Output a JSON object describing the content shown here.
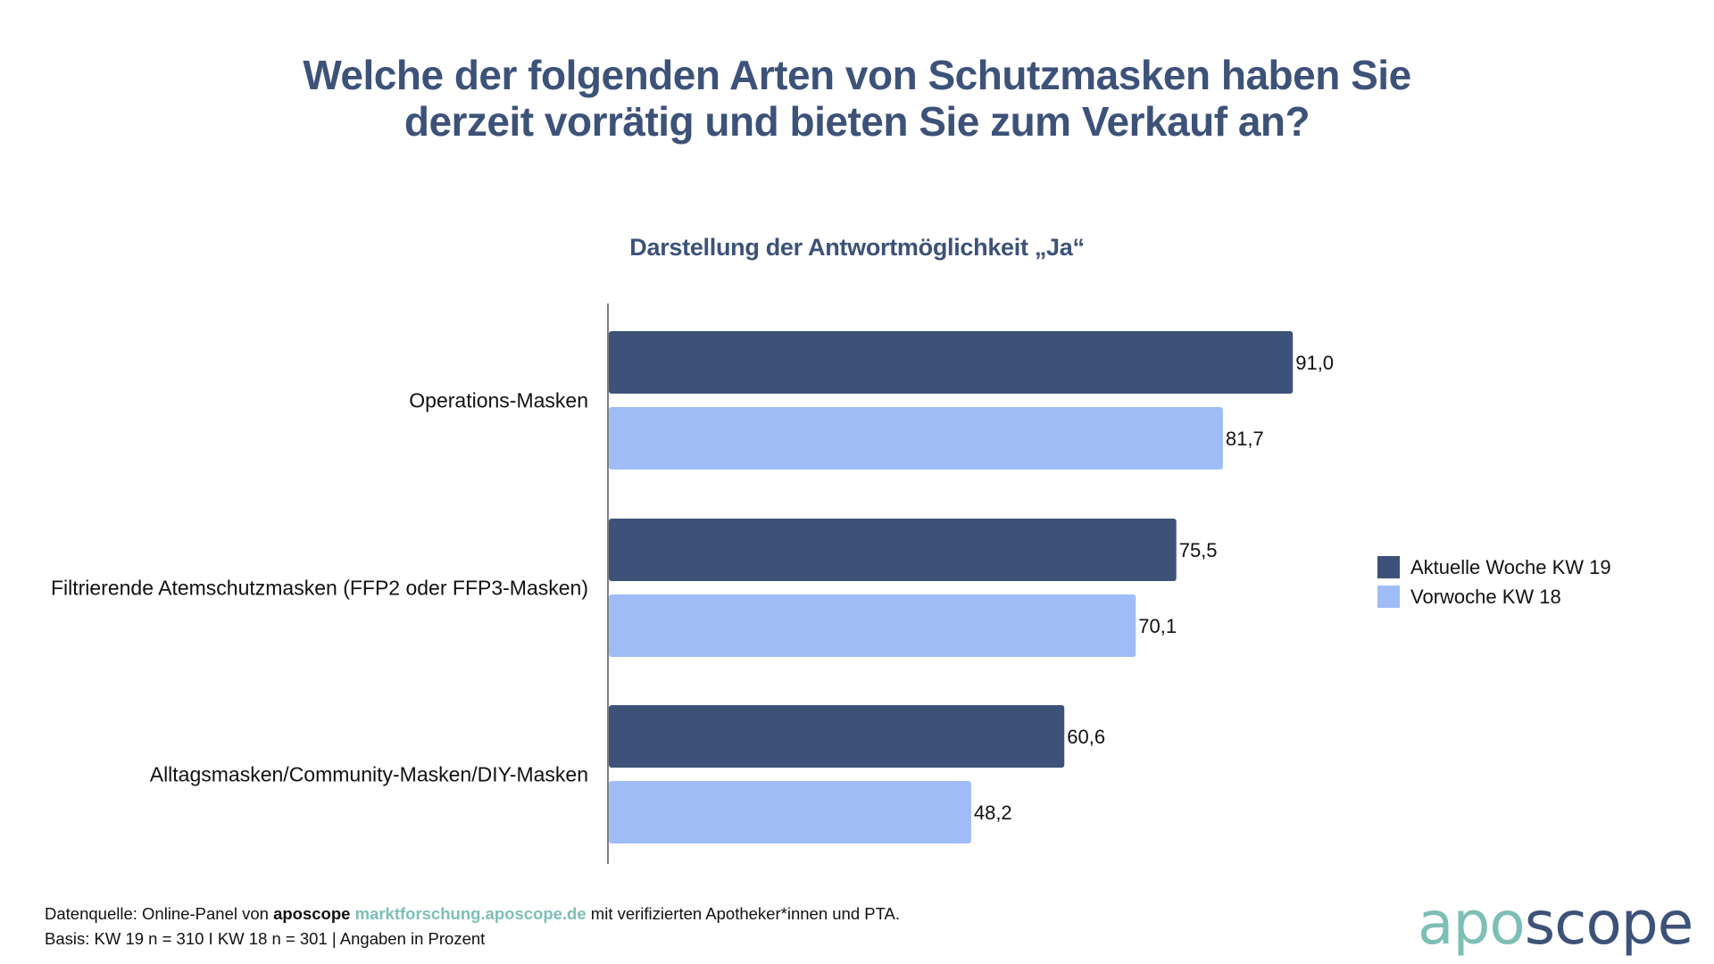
{
  "header": {
    "title_line1": "Welche der folgenden Arten von Schutzmasken haben Sie",
    "title_line2": "derzeit vorrätig und bieten Sie zum Verkauf an?",
    "subtitle": "Darstellung der Antwortmöglichkeit „Ja“"
  },
  "colors": {
    "title": "#3d5278",
    "current_week": "#3d5278",
    "previous_week": "#9fbcf7",
    "logo_accent": "#7dbfb6"
  },
  "chart_data": {
    "type": "bar",
    "orientation": "horizontal",
    "title": "Welche der folgenden Arten von Schutzmasken haben Sie derzeit vorrätig und bieten Sie zum Verkauf an?",
    "subtitle": "Darstellung der Antwortmöglichkeit „Ja“",
    "categories": [
      "Operations-Masken",
      "Filtrierende Atemschutzmasken (FFP2 oder FFP3-Masken)",
      "Alltagsmasken/Community-Masken/DIY-Masken"
    ],
    "series": [
      {
        "name": "Aktuelle Woche KW 19",
        "color": "#3d5278",
        "values": [
          91.0,
          75.5,
          60.6
        ],
        "labels": [
          "91,0",
          "75,5",
          "60,6"
        ]
      },
      {
        "name": "Vorwoche KW 18",
        "color": "#9fbcf7",
        "values": [
          81.7,
          70.1,
          48.2
        ],
        "labels": [
          "81,7",
          "70,1",
          "48,2"
        ]
      }
    ],
    "xlabel": "",
    "ylabel": "",
    "xlim": [
      0,
      100
    ],
    "unit": "Prozent",
    "grid": false,
    "legend_position": "right"
  },
  "footer": {
    "source_prefix": "Datenquelle: Online-Panel von ",
    "source_brand": "aposcope",
    "source_link": "marktforschung.aposcope.de",
    "source_suffix": " mit verifizierten Apotheker*innen und PTA.",
    "basis": "Basis: KW 19 n = 310 I KW 18 n = 301 | Angaben in Prozent"
  },
  "logo": {
    "part1": "apo",
    "part2": "scope"
  }
}
